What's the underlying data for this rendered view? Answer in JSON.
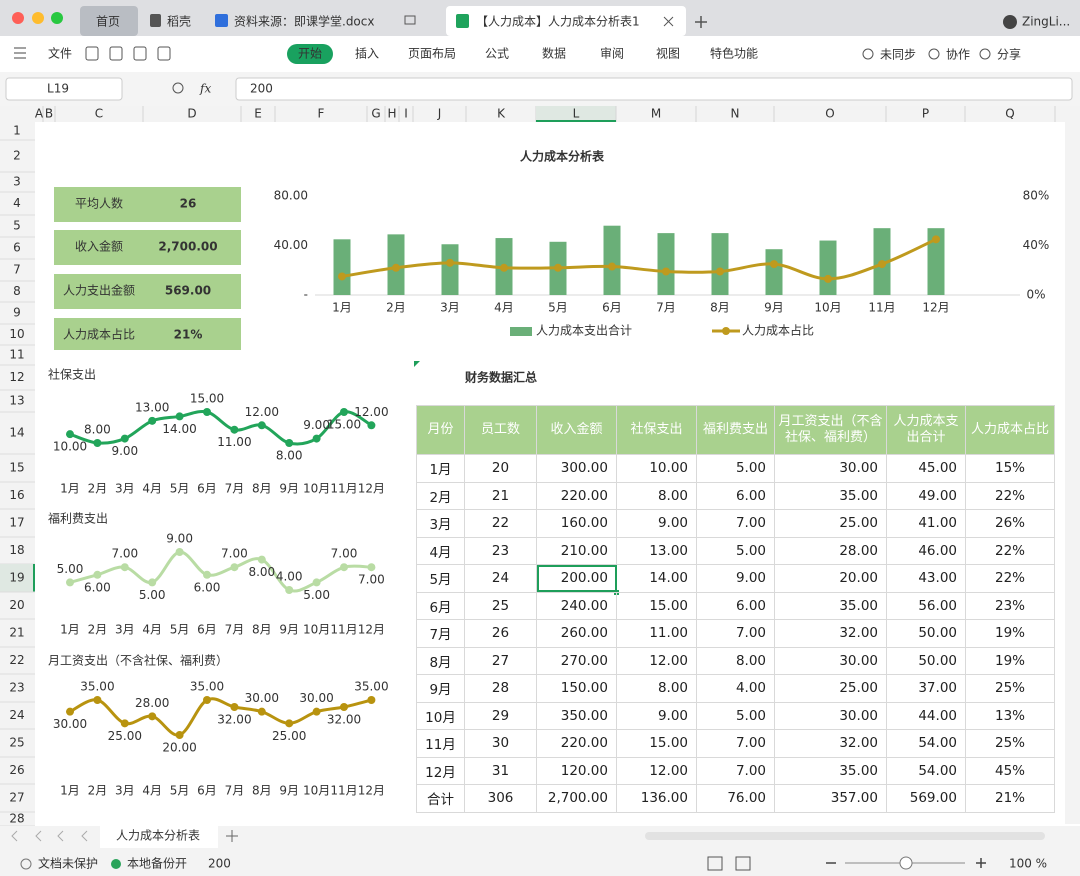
{
  "tabs": {
    "items": [
      "首页",
      "稻壳",
      "资料来源：即课学堂.docx",
      "【人力成本】人力成本分析表1"
    ],
    "user": "ZingLi..."
  },
  "menu": {
    "items": [
      "文件",
      "开始",
      "插入",
      "页面布局",
      "公式",
      "数据",
      "审阅",
      "视图",
      "特色功能"
    ],
    "right": [
      "未同步",
      "协作",
      "分享"
    ]
  },
  "formula_bar": {
    "cell": "L19",
    "fx": "fx",
    "value": "200"
  },
  "columns": [
    "A",
    "B",
    "C",
    "D",
    "E",
    "F",
    "G",
    "H",
    "I",
    "J",
    "K",
    "L",
    "M",
    "N",
    "O",
    "P",
    "Q"
  ],
  "rows": [
    1,
    2,
    3,
    4,
    5,
    6,
    7,
    8,
    9,
    10,
    11,
    12,
    13,
    14,
    15,
    16,
    17,
    18,
    19,
    20,
    21,
    22,
    23,
    24,
    25,
    26,
    27,
    28
  ],
  "sheet": {
    "title": "人力成本分析表",
    "kpis": [
      {
        "label": "平均人数",
        "value": "26"
      },
      {
        "label": "收入金额",
        "value": "2,700.00"
      },
      {
        "label": "人力支出金额",
        "value": "569.00"
      },
      {
        "label": "人力成本占比",
        "value": "21%"
      }
    ]
  },
  "table": {
    "title": "财务数据汇总",
    "header": [
      "月份",
      "员工数",
      "收入金额",
      "社保支出",
      "福利费支出",
      "月工资支出（不含社保、福利费）",
      "人力成本支出合计",
      "人力成本占比"
    ],
    "rows": [
      [
        "1月",
        "20",
        "300.00",
        "10.00",
        "5.00",
        "30.00",
        "45.00",
        "15%"
      ],
      [
        "2月",
        "21",
        "220.00",
        "8.00",
        "6.00",
        "35.00",
        "49.00",
        "22%"
      ],
      [
        "3月",
        "22",
        "160.00",
        "9.00",
        "7.00",
        "25.00",
        "41.00",
        "26%"
      ],
      [
        "4月",
        "23",
        "210.00",
        "13.00",
        "5.00",
        "28.00",
        "46.00",
        "22%"
      ],
      [
        "5月",
        "24",
        "200.00",
        "14.00",
        "9.00",
        "20.00",
        "43.00",
        "22%"
      ],
      [
        "6月",
        "25",
        "240.00",
        "15.00",
        "6.00",
        "35.00",
        "56.00",
        "23%"
      ],
      [
        "7月",
        "26",
        "260.00",
        "11.00",
        "7.00",
        "32.00",
        "50.00",
        "19%"
      ],
      [
        "8月",
        "27",
        "270.00",
        "12.00",
        "8.00",
        "30.00",
        "50.00",
        "19%"
      ],
      [
        "9月",
        "28",
        "150.00",
        "8.00",
        "4.00",
        "25.00",
        "37.00",
        "25%"
      ],
      [
        "10月",
        "29",
        "350.00",
        "9.00",
        "5.00",
        "30.00",
        "44.00",
        "13%"
      ],
      [
        "11月",
        "30",
        "220.00",
        "15.00",
        "7.00",
        "32.00",
        "54.00",
        "25%"
      ],
      [
        "12月",
        "31",
        "120.00",
        "12.00",
        "7.00",
        "35.00",
        "54.00",
        "45%"
      ],
      [
        "合计",
        "306",
        "2,700.00",
        "136.00",
        "76.00",
        "357.00",
        "569.00",
        "21%"
      ]
    ]
  },
  "chart_data": [
    {
      "type": "bar",
      "categories": [
        "1月",
        "2月",
        "3月",
        "4月",
        "5月",
        "6月",
        "7月",
        "8月",
        "9月",
        "10月",
        "11月",
        "12月"
      ],
      "series": [
        {
          "name": "人力成本支出合计",
          "color": "#6aaf78",
          "values": [
            45,
            49,
            41,
            46,
            43,
            56,
            50,
            50,
            37,
            44,
            54,
            54
          ]
        },
        {
          "name": "人力成本占比",
          "type": "line",
          "axis": "y2",
          "color": "#bf9a1e",
          "values": [
            15,
            22,
            26,
            22,
            22,
            23,
            19,
            19,
            25,
            13,
            25,
            45
          ]
        }
      ],
      "ylim": [
        0,
        80
      ],
      "yticks": [
        {
          "value": 0,
          "label": "-"
        },
        {
          "value": 40,
          "label": "40.00"
        },
        {
          "value": 80,
          "label": "80.00"
        }
      ],
      "y2lim": [
        0,
        80
      ],
      "y2ticks": [
        {
          "value": 0,
          "label": "0%"
        },
        {
          "value": 40,
          "label": "40%"
        },
        {
          "value": 80,
          "label": "80%"
        }
      ],
      "legend": "bottom"
    },
    {
      "type": "line",
      "title": "社保支出",
      "categories": [
        "1月",
        "2月",
        "3月",
        "4月",
        "5月",
        "6月",
        "7月",
        "8月",
        "9月",
        "10月",
        "11月",
        "12月"
      ],
      "color": "#22a55a",
      "values": [
        10,
        8,
        9,
        13,
        14,
        15,
        11,
        12,
        8,
        9,
        15,
        12
      ],
      "value_labels": [
        "10.00",
        "8.00",
        "9.00",
        "13.00",
        "14.00",
        "15.00",
        "11.00",
        "12.00",
        "8.00",
        "9.00",
        "15.00",
        "12.00"
      ]
    },
    {
      "type": "line",
      "title": "福利费支出",
      "categories": [
        "1月",
        "2月",
        "3月",
        "4月",
        "5月",
        "6月",
        "7月",
        "8月",
        "9月",
        "10月",
        "11月",
        "12月"
      ],
      "color": "#b9dca4",
      "values": [
        5,
        6,
        7,
        5,
        9,
        6,
        7,
        8,
        4,
        5,
        7,
        7
      ],
      "value_labels": [
        "5.00",
        "6.00",
        "7.00",
        "5.00",
        "9.00",
        "6.00",
        "7.00",
        "8.00",
        "4.00",
        "5.00",
        "7.00",
        "7.00"
      ]
    },
    {
      "type": "line",
      "title": "月工资支出（不含社保、福利费）",
      "categories": [
        "1月",
        "2月",
        "3月",
        "4月",
        "5月",
        "6月",
        "7月",
        "8月",
        "9月",
        "10月",
        "11月",
        "12月"
      ],
      "color": "#b8930f",
      "values": [
        30,
        35,
        25,
        28,
        20,
        35,
        32,
        30,
        25,
        30,
        32,
        35
      ],
      "value_labels": [
        "30.00",
        "35.00",
        "25.00",
        "28.00",
        "20.00",
        "35.00",
        "32.00",
        "30.00",
        "25.00",
        "30.00",
        "32.00",
        "35.00"
      ]
    }
  ],
  "sheet_tabs": {
    "active": "人力成本分析表"
  },
  "status": {
    "items": [
      "文档未保护",
      "本地备份开"
    ],
    "cell_value": "200",
    "zoom": "100 %"
  }
}
